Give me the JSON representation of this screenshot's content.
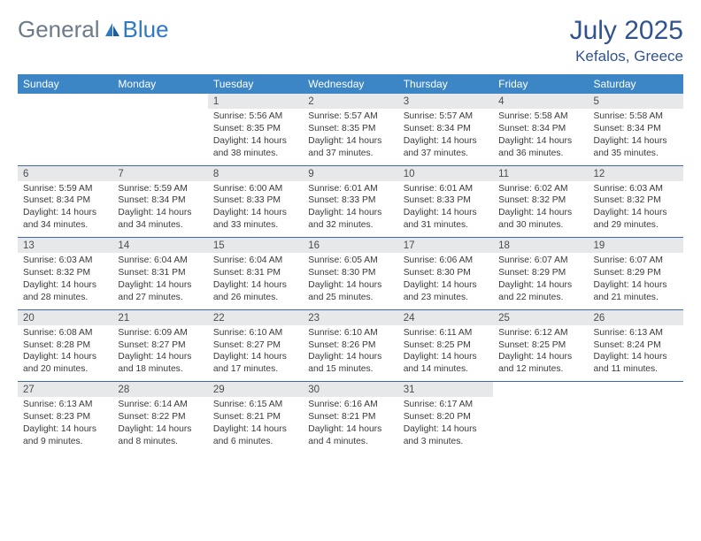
{
  "brand": {
    "general": "General",
    "blue": "Blue"
  },
  "title": "July 2025",
  "location": "Kefalos, Greece",
  "colors": {
    "header_bg": "#3d86c6",
    "line": "#3d6aa3",
    "daynum_bg": "#e7e8ea",
    "title_color": "#31538f",
    "logo_gray": "#6b7b8a",
    "logo_blue": "#2f78c2"
  },
  "days_of_week": [
    "Sunday",
    "Monday",
    "Tuesday",
    "Wednesday",
    "Thursday",
    "Friday",
    "Saturday"
  ],
  "weeks": [
    [
      null,
      null,
      {
        "n": "1",
        "sr": "Sunrise: 5:56 AM",
        "ss": "Sunset: 8:35 PM",
        "d1": "Daylight: 14 hours",
        "d2": "and 38 minutes."
      },
      {
        "n": "2",
        "sr": "Sunrise: 5:57 AM",
        "ss": "Sunset: 8:35 PM",
        "d1": "Daylight: 14 hours",
        "d2": "and 37 minutes."
      },
      {
        "n": "3",
        "sr": "Sunrise: 5:57 AM",
        "ss": "Sunset: 8:34 PM",
        "d1": "Daylight: 14 hours",
        "d2": "and 37 minutes."
      },
      {
        "n": "4",
        "sr": "Sunrise: 5:58 AM",
        "ss": "Sunset: 8:34 PM",
        "d1": "Daylight: 14 hours",
        "d2": "and 36 minutes."
      },
      {
        "n": "5",
        "sr": "Sunrise: 5:58 AM",
        "ss": "Sunset: 8:34 PM",
        "d1": "Daylight: 14 hours",
        "d2": "and 35 minutes."
      }
    ],
    [
      {
        "n": "6",
        "sr": "Sunrise: 5:59 AM",
        "ss": "Sunset: 8:34 PM",
        "d1": "Daylight: 14 hours",
        "d2": "and 34 minutes."
      },
      {
        "n": "7",
        "sr": "Sunrise: 5:59 AM",
        "ss": "Sunset: 8:34 PM",
        "d1": "Daylight: 14 hours",
        "d2": "and 34 minutes."
      },
      {
        "n": "8",
        "sr": "Sunrise: 6:00 AM",
        "ss": "Sunset: 8:33 PM",
        "d1": "Daylight: 14 hours",
        "d2": "and 33 minutes."
      },
      {
        "n": "9",
        "sr": "Sunrise: 6:01 AM",
        "ss": "Sunset: 8:33 PM",
        "d1": "Daylight: 14 hours",
        "d2": "and 32 minutes."
      },
      {
        "n": "10",
        "sr": "Sunrise: 6:01 AM",
        "ss": "Sunset: 8:33 PM",
        "d1": "Daylight: 14 hours",
        "d2": "and 31 minutes."
      },
      {
        "n": "11",
        "sr": "Sunrise: 6:02 AM",
        "ss": "Sunset: 8:32 PM",
        "d1": "Daylight: 14 hours",
        "d2": "and 30 minutes."
      },
      {
        "n": "12",
        "sr": "Sunrise: 6:03 AM",
        "ss": "Sunset: 8:32 PM",
        "d1": "Daylight: 14 hours",
        "d2": "and 29 minutes."
      }
    ],
    [
      {
        "n": "13",
        "sr": "Sunrise: 6:03 AM",
        "ss": "Sunset: 8:32 PM",
        "d1": "Daylight: 14 hours",
        "d2": "and 28 minutes."
      },
      {
        "n": "14",
        "sr": "Sunrise: 6:04 AM",
        "ss": "Sunset: 8:31 PM",
        "d1": "Daylight: 14 hours",
        "d2": "and 27 minutes."
      },
      {
        "n": "15",
        "sr": "Sunrise: 6:04 AM",
        "ss": "Sunset: 8:31 PM",
        "d1": "Daylight: 14 hours",
        "d2": "and 26 minutes."
      },
      {
        "n": "16",
        "sr": "Sunrise: 6:05 AM",
        "ss": "Sunset: 8:30 PM",
        "d1": "Daylight: 14 hours",
        "d2": "and 25 minutes."
      },
      {
        "n": "17",
        "sr": "Sunrise: 6:06 AM",
        "ss": "Sunset: 8:30 PM",
        "d1": "Daylight: 14 hours",
        "d2": "and 23 minutes."
      },
      {
        "n": "18",
        "sr": "Sunrise: 6:07 AM",
        "ss": "Sunset: 8:29 PM",
        "d1": "Daylight: 14 hours",
        "d2": "and 22 minutes."
      },
      {
        "n": "19",
        "sr": "Sunrise: 6:07 AM",
        "ss": "Sunset: 8:29 PM",
        "d1": "Daylight: 14 hours",
        "d2": "and 21 minutes."
      }
    ],
    [
      {
        "n": "20",
        "sr": "Sunrise: 6:08 AM",
        "ss": "Sunset: 8:28 PM",
        "d1": "Daylight: 14 hours",
        "d2": "and 20 minutes."
      },
      {
        "n": "21",
        "sr": "Sunrise: 6:09 AM",
        "ss": "Sunset: 8:27 PM",
        "d1": "Daylight: 14 hours",
        "d2": "and 18 minutes."
      },
      {
        "n": "22",
        "sr": "Sunrise: 6:10 AM",
        "ss": "Sunset: 8:27 PM",
        "d1": "Daylight: 14 hours",
        "d2": "and 17 minutes."
      },
      {
        "n": "23",
        "sr": "Sunrise: 6:10 AM",
        "ss": "Sunset: 8:26 PM",
        "d1": "Daylight: 14 hours",
        "d2": "and 15 minutes."
      },
      {
        "n": "24",
        "sr": "Sunrise: 6:11 AM",
        "ss": "Sunset: 8:25 PM",
        "d1": "Daylight: 14 hours",
        "d2": "and 14 minutes."
      },
      {
        "n": "25",
        "sr": "Sunrise: 6:12 AM",
        "ss": "Sunset: 8:25 PM",
        "d1": "Daylight: 14 hours",
        "d2": "and 12 minutes."
      },
      {
        "n": "26",
        "sr": "Sunrise: 6:13 AM",
        "ss": "Sunset: 8:24 PM",
        "d1": "Daylight: 14 hours",
        "d2": "and 11 minutes."
      }
    ],
    [
      {
        "n": "27",
        "sr": "Sunrise: 6:13 AM",
        "ss": "Sunset: 8:23 PM",
        "d1": "Daylight: 14 hours",
        "d2": "and 9 minutes."
      },
      {
        "n": "28",
        "sr": "Sunrise: 6:14 AM",
        "ss": "Sunset: 8:22 PM",
        "d1": "Daylight: 14 hours",
        "d2": "and 8 minutes."
      },
      {
        "n": "29",
        "sr": "Sunrise: 6:15 AM",
        "ss": "Sunset: 8:21 PM",
        "d1": "Daylight: 14 hours",
        "d2": "and 6 minutes."
      },
      {
        "n": "30",
        "sr": "Sunrise: 6:16 AM",
        "ss": "Sunset: 8:21 PM",
        "d1": "Daylight: 14 hours",
        "d2": "and 4 minutes."
      },
      {
        "n": "31",
        "sr": "Sunrise: 6:17 AM",
        "ss": "Sunset: 8:20 PM",
        "d1": "Daylight: 14 hours",
        "d2": "and 3 minutes."
      },
      null,
      null
    ]
  ]
}
